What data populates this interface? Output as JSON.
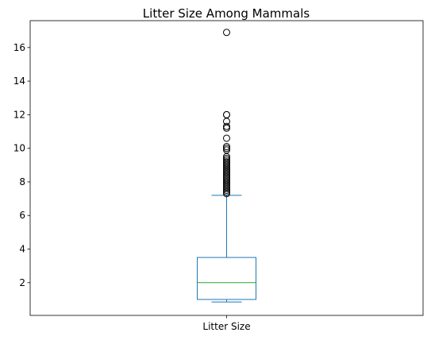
{
  "chart_data": {
    "type": "box",
    "title": "Litter Size Among Mammals",
    "xlabel": "",
    "ylabel": "",
    "categories": [
      "Litter Size"
    ],
    "ylim": [
      0.05,
      17.6
    ],
    "yticks": [
      2,
      4,
      6,
      8,
      10,
      12,
      14,
      16
    ],
    "grid": false,
    "box": {
      "whisker_low": 0.85,
      "q1": 1.0,
      "median": 2.0,
      "q3": 3.5,
      "whisker_high": 7.2
    },
    "outliers": [
      7.3,
      7.4,
      7.5,
      7.6,
      7.7,
      7.8,
      7.9,
      8.0,
      8.1,
      8.2,
      8.3,
      8.4,
      8.5,
      8.6,
      8.7,
      8.8,
      8.9,
      9.0,
      9.1,
      9.2,
      9.3,
      9.4,
      9.5,
      9.9,
      10.0,
      10.1,
      10.6,
      11.2,
      11.3,
      11.6,
      12.0,
      12.0,
      16.9
    ],
    "colors": {
      "box": "#1f77b4",
      "median": "#2ca02c",
      "outlier": "#000000",
      "axes": "#000000"
    }
  }
}
